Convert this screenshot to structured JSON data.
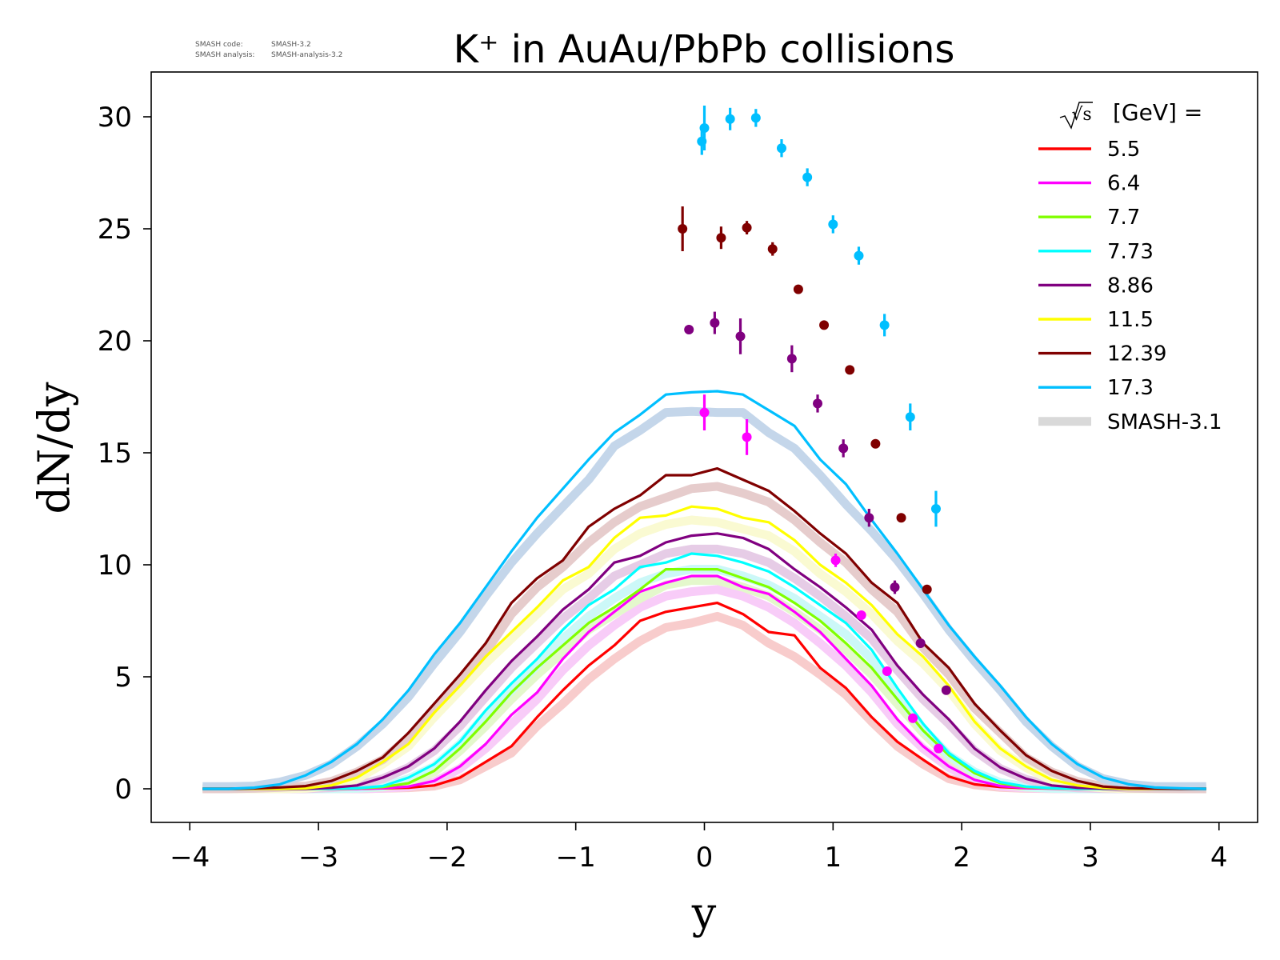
{
  "meta": {
    "code_label": "SMASH code:",
    "code_value": "SMASH-3.2",
    "analysis_label": "SMASH analysis:",
    "analysis_value": "SMASH-analysis-3.2"
  },
  "chart_data": {
    "type": "line",
    "title": "K⁺ in AuAu/PbPb collisions",
    "xlabel": "y",
    "ylabel": "dN/dy",
    "xlim": [
      -4.3,
      4.3
    ],
    "ylim": [
      -1.5,
      32
    ],
    "xticks": [
      -4,
      -3,
      -2,
      -1,
      0,
      1,
      2,
      3,
      4
    ],
    "xtick_labels": [
      "−4",
      "−3",
      "−2",
      "−1",
      "0",
      "1",
      "2",
      "3",
      "4"
    ],
    "yticks": [
      0,
      5,
      10,
      15,
      20,
      25,
      30
    ],
    "ytick_labels": [
      "0",
      "5",
      "10",
      "15",
      "20",
      "25",
      "30"
    ],
    "grid": false,
    "legend": {
      "placement": "top-right",
      "header_root": "√s",
      "header_unit": "[GeV] =",
      "reference_label": "SMASH-3.1",
      "reference_color": "#d9d9d9"
    },
    "x": [
      -3.9,
      -3.7,
      -3.5,
      -3.3,
      -3.1,
      -2.9,
      -2.7,
      -2.5,
      -2.3,
      -2.1,
      -1.9,
      -1.7,
      -1.5,
      -1.3,
      -1.1,
      -0.9,
      -0.7,
      -0.5,
      -0.3,
      -0.1,
      0.1,
      0.3,
      0.5,
      0.7,
      0.9,
      1.1,
      1.3,
      1.5,
      1.7,
      1.9,
      2.1,
      2.3,
      2.5,
      2.7,
      2.9,
      3.1,
      3.3,
      3.5,
      3.7,
      3.9
    ],
    "series": [
      {
        "name": "5.5",
        "color": "#ff0000",
        "values": [
          0,
          0,
          0,
          0,
          0,
          0,
          0,
          0.02,
          0.05,
          0.15,
          0.5,
          1.2,
          1.9,
          3.2,
          4.4,
          5.5,
          6.4,
          7.5,
          7.9,
          8.1,
          8.3,
          7.8,
          7.0,
          6.85,
          5.4,
          4.5,
          3.2,
          2.1,
          1.3,
          0.55,
          0.2,
          0.08,
          0.03,
          0.01,
          0,
          0,
          0,
          0,
          0,
          0
        ],
        "reference": [
          0,
          0,
          0,
          0,
          0,
          0,
          0,
          0.02,
          0.05,
          0.12,
          0.4,
          1.0,
          1.6,
          2.8,
          3.8,
          4.9,
          5.8,
          6.6,
          7.2,
          7.4,
          7.7,
          7.3,
          6.5,
          5.9,
          5.1,
          4.2,
          3.0,
          1.9,
          1.1,
          0.45,
          0.18,
          0.06,
          0.02,
          0.01,
          0,
          0,
          0,
          0,
          0,
          0
        ],
        "ref_color": "#f8cccc",
        "points": []
      },
      {
        "name": "6.4",
        "color": "#ff00ff",
        "values": [
          0,
          0,
          0,
          0,
          0,
          0,
          0,
          0.03,
          0.1,
          0.35,
          1.0,
          2.0,
          3.3,
          4.3,
          5.8,
          7.0,
          7.9,
          8.8,
          9.2,
          9.5,
          9.5,
          9.0,
          8.7,
          7.9,
          7.0,
          5.8,
          4.6,
          3.1,
          1.9,
          1.0,
          0.4,
          0.12,
          0.04,
          0.01,
          0,
          0,
          0,
          0,
          0,
          0
        ],
        "reference": [
          0,
          0,
          0,
          0,
          0,
          0,
          0,
          0.03,
          0.09,
          0.3,
          0.9,
          1.8,
          2.9,
          4.0,
          5.3,
          6.4,
          7.3,
          8.1,
          8.6,
          8.8,
          8.9,
          8.6,
          8.1,
          7.4,
          6.5,
          5.5,
          4.3,
          2.9,
          1.8,
          0.95,
          0.38,
          0.11,
          0.04,
          0.01,
          0,
          0,
          0,
          0,
          0,
          0
        ],
        "ref_color": "#f8ccf8",
        "points": [
          {
            "x": 0.0,
            "y": 16.8,
            "err": 0.8
          },
          {
            "x": 0.33,
            "y": 15.7,
            "err": 0.8
          },
          {
            "x": 1.02,
            "y": 10.2,
            "err": 0.3
          },
          {
            "x": 1.22,
            "y": 7.75,
            "err": 0.2
          },
          {
            "x": 1.42,
            "y": 5.25,
            "err": 0.2
          },
          {
            "x": 1.62,
            "y": 3.15,
            "err": 0.15
          },
          {
            "x": 1.82,
            "y": 1.8,
            "err": 0.15
          }
        ]
      },
      {
        "name": "7.7",
        "color": "#80ff00",
        "values": [
          0,
          0,
          0,
          0,
          0,
          0,
          0.02,
          0.08,
          0.25,
          0.8,
          1.8,
          3.0,
          4.3,
          5.4,
          6.4,
          7.4,
          8.1,
          8.9,
          9.8,
          9.8,
          9.8,
          9.4,
          9.0,
          8.3,
          7.5,
          6.5,
          5.4,
          4.0,
          2.6,
          1.5,
          0.7,
          0.25,
          0.08,
          0.02,
          0,
          0,
          0,
          0,
          0,
          0
        ],
        "reference": [
          0,
          0,
          0,
          0,
          0,
          0,
          0.02,
          0.08,
          0.25,
          0.75,
          1.7,
          2.8,
          4.0,
          5.1,
          6.1,
          7.1,
          7.8,
          8.5,
          9.1,
          9.3,
          9.3,
          9.0,
          8.6,
          7.9,
          7.1,
          6.2,
          5.1,
          3.8,
          2.5,
          1.4,
          0.65,
          0.22,
          0.07,
          0.02,
          0,
          0,
          0,
          0,
          0,
          0
        ],
        "ref_color": "#e4f8cc",
        "points": []
      },
      {
        "name": "7.73",
        "color": "#00ffff",
        "values": [
          0,
          0,
          0,
          0,
          0,
          0,
          0.03,
          0.12,
          0.5,
          1.1,
          2.1,
          3.5,
          4.7,
          5.8,
          7.1,
          8.2,
          8.9,
          9.9,
          10.1,
          10.5,
          10.4,
          10.1,
          9.7,
          9.0,
          8.2,
          7.4,
          6.2,
          4.5,
          2.9,
          1.6,
          0.8,
          0.3,
          0.1,
          0.03,
          0,
          0,
          0,
          0,
          0,
          0
        ],
        "reference": [
          0,
          0,
          0,
          0,
          0,
          0,
          0.03,
          0.1,
          0.45,
          1.0,
          2.0,
          3.3,
          4.4,
          5.5,
          6.7,
          7.7,
          8.5,
          9.2,
          9.6,
          9.8,
          9.8,
          9.5,
          9.1,
          8.5,
          7.7,
          6.9,
          5.8,
          4.2,
          2.7,
          1.5,
          0.75,
          0.28,
          0.09,
          0.02,
          0,
          0,
          0,
          0,
          0,
          0
        ],
        "ref_color": "#ccf8f8",
        "points": []
      },
      {
        "name": "8.86",
        "color": "#800080",
        "values": [
          0,
          0,
          0,
          0,
          0,
          0.05,
          0.15,
          0.5,
          1.0,
          1.8,
          3.0,
          4.4,
          5.7,
          6.8,
          8.0,
          8.9,
          10.1,
          10.4,
          11.0,
          11.3,
          11.4,
          11.2,
          10.7,
          9.8,
          9.0,
          8.1,
          7.1,
          5.5,
          4.2,
          3.1,
          1.8,
          0.95,
          0.45,
          0.15,
          0.05,
          0.01,
          0,
          0,
          0,
          0
        ],
        "reference": [
          0,
          0,
          0,
          0,
          0,
          0.05,
          0.15,
          0.45,
          0.95,
          1.7,
          2.8,
          4.1,
          5.4,
          6.5,
          7.6,
          8.5,
          9.5,
          10.0,
          10.5,
          10.7,
          10.7,
          10.5,
          10.1,
          9.4,
          8.6,
          7.7,
          6.7,
          5.3,
          4.0,
          2.9,
          1.7,
          0.9,
          0.42,
          0.14,
          0.04,
          0.01,
          0,
          0,
          0,
          0
        ],
        "ref_color": "#e6cce6",
        "points": [
          {
            "x": -0.12,
            "y": 20.5,
            "err": 0.2
          },
          {
            "x": 0.08,
            "y": 20.8,
            "err": 0.5
          },
          {
            "x": 0.28,
            "y": 20.2,
            "err": 0.8
          },
          {
            "x": 0.68,
            "y": 19.2,
            "err": 0.6
          },
          {
            "x": 0.88,
            "y": 17.2,
            "err": 0.4
          },
          {
            "x": 1.08,
            "y": 15.2,
            "err": 0.4
          },
          {
            "x": 1.28,
            "y": 12.1,
            "err": 0.4
          },
          {
            "x": 1.48,
            "y": 9.0,
            "err": 0.3
          },
          {
            "x": 1.68,
            "y": 6.5,
            "err": 0.2
          },
          {
            "x": 1.88,
            "y": 4.4,
            "err": 0.2
          }
        ]
      },
      {
        "name": "11.5",
        "color": "#ffff00",
        "values": [
          0,
          0,
          0,
          0,
          0.02,
          0.15,
          0.5,
          1.2,
          2.0,
          3.4,
          4.6,
          5.9,
          7.0,
          8.1,
          9.3,
          9.9,
          11.2,
          12.1,
          12.2,
          12.6,
          12.5,
          12.1,
          11.9,
          11.1,
          10.0,
          9.2,
          8.2,
          6.9,
          5.9,
          4.6,
          3.0,
          1.8,
          1.0,
          0.4,
          0.15,
          0.04,
          0,
          0,
          0,
          0
        ],
        "reference": [
          0,
          0,
          0,
          0,
          0.02,
          0.14,
          0.45,
          1.1,
          1.9,
          3.2,
          4.4,
          5.6,
          6.7,
          7.8,
          8.9,
          9.6,
          10.7,
          11.4,
          11.8,
          12.0,
          11.9,
          11.6,
          11.3,
          10.6,
          9.6,
          8.8,
          7.8,
          6.6,
          5.6,
          4.4,
          2.9,
          1.7,
          0.95,
          0.38,
          0.14,
          0.04,
          0,
          0,
          0,
          0
        ],
        "ref_color": "#fafad2",
        "points": []
      },
      {
        "name": "12.39",
        "color": "#800000",
        "values": [
          0,
          0,
          0.02,
          0.06,
          0.12,
          0.35,
          0.8,
          1.4,
          2.5,
          3.8,
          5.1,
          6.5,
          8.3,
          9.4,
          10.2,
          11.7,
          12.5,
          13.1,
          14.0,
          14.0,
          14.3,
          13.8,
          13.3,
          12.4,
          11.4,
          10.5,
          9.2,
          8.3,
          6.5,
          5.4,
          3.8,
          2.6,
          1.5,
          0.8,
          0.35,
          0.1,
          0.03,
          0.01,
          0,
          0
        ],
        "reference": [
          0,
          0,
          0.02,
          0.06,
          0.12,
          0.33,
          0.75,
          1.3,
          2.3,
          3.6,
          4.8,
          6.1,
          7.8,
          9.0,
          9.9,
          11.0,
          11.9,
          12.6,
          13.0,
          13.4,
          13.5,
          13.2,
          12.8,
          12.0,
          11.0,
          10.1,
          8.9,
          7.9,
          6.3,
          5.1,
          3.6,
          2.5,
          1.4,
          0.75,
          0.33,
          0.1,
          0.03,
          0.01,
          0,
          0
        ],
        "ref_color": "#e6cccc",
        "points": [
          {
            "x": -0.17,
            "y": 25.0,
            "err": 1.0
          },
          {
            "x": 0.13,
            "y": 24.6,
            "err": 0.5
          },
          {
            "x": 0.33,
            "y": 25.05,
            "err": 0.3
          },
          {
            "x": 0.53,
            "y": 24.1,
            "err": 0.3
          },
          {
            "x": 0.73,
            "y": 22.3,
            "err": 0.2
          },
          {
            "x": 0.93,
            "y": 20.7,
            "err": 0.2
          },
          {
            "x": 1.13,
            "y": 18.7,
            "err": 0.2
          },
          {
            "x": 1.33,
            "y": 15.4,
            "err": 0.2
          },
          {
            "x": 1.53,
            "y": 12.1,
            "err": 0.2
          },
          {
            "x": 1.73,
            "y": 8.9,
            "err": 0.2
          }
        ]
      },
      {
        "name": "17.3",
        "color": "#00bfff",
        "values": [
          0,
          0,
          0.05,
          0.2,
          0.6,
          1.2,
          2.0,
          3.1,
          4.4,
          6.0,
          7.4,
          9.0,
          10.6,
          12.1,
          13.4,
          14.7,
          15.9,
          16.7,
          17.6,
          17.7,
          17.75,
          17.6,
          16.9,
          16.2,
          14.7,
          13.6,
          12.0,
          10.5,
          8.9,
          7.3,
          5.9,
          4.6,
          3.2,
          2.0,
          1.1,
          0.5,
          0.2,
          0.06,
          0.02,
          0
        ],
        "reference": [
          0.1,
          0.1,
          0.12,
          0.3,
          0.6,
          1.1,
          1.9,
          2.9,
          4.1,
          5.6,
          7.0,
          8.6,
          10.1,
          11.4,
          12.6,
          13.8,
          15.3,
          16.0,
          16.8,
          16.85,
          16.8,
          16.8,
          15.9,
          15.2,
          14.0,
          12.7,
          11.5,
          10.2,
          8.7,
          7.1,
          5.7,
          4.4,
          3.0,
          1.9,
          1.0,
          0.45,
          0.2,
          0.1,
          0.1,
          0.1
        ],
        "ref_color": "#c4d6ea",
        "points": [
          {
            "x": -0.02,
            "y": 28.9,
            "err": 0.6
          },
          {
            "x": 0.0,
            "y": 29.5,
            "err": 1.0
          },
          {
            "x": 0.2,
            "y": 29.9,
            "err": 0.5
          },
          {
            "x": 0.4,
            "y": 29.95,
            "err": 0.4
          },
          {
            "x": 0.6,
            "y": 28.6,
            "err": 0.4
          },
          {
            "x": 0.8,
            "y": 27.3,
            "err": 0.4
          },
          {
            "x": 1.0,
            "y": 25.2,
            "err": 0.4
          },
          {
            "x": 1.2,
            "y": 23.8,
            "err": 0.4
          },
          {
            "x": 1.4,
            "y": 20.7,
            "err": 0.5
          },
          {
            "x": 1.6,
            "y": 16.6,
            "err": 0.6
          },
          {
            "x": 1.8,
            "y": 12.5,
            "err": 0.8
          }
        ]
      }
    ]
  }
}
